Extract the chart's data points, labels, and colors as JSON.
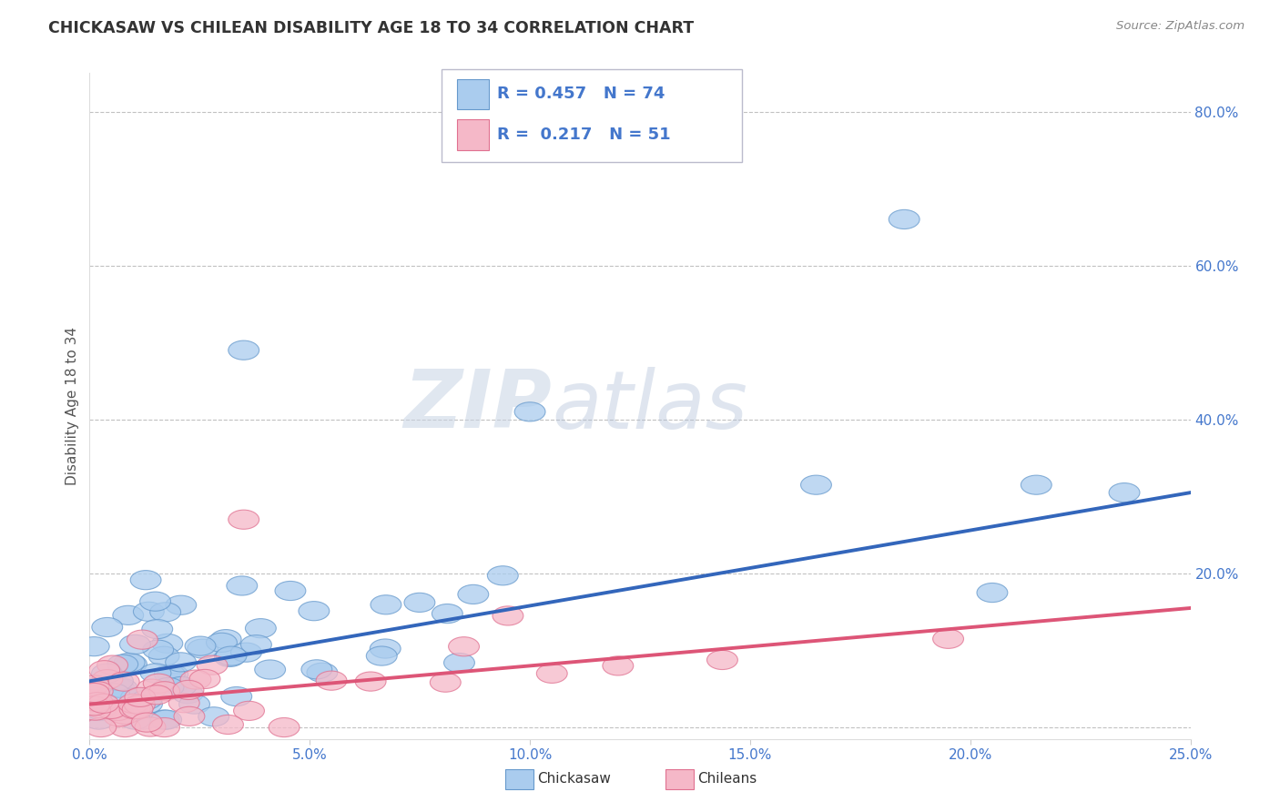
{
  "title": "CHICKASAW VS CHILEAN DISABILITY AGE 18 TO 34 CORRELATION CHART",
  "source": "Source: ZipAtlas.com",
  "ylabel": "Disability Age 18 to 34",
  "x_min": 0.0,
  "x_max": 0.25,
  "y_min": -0.015,
  "y_max": 0.85,
  "y_ticks": [
    0.0,
    0.2,
    0.4,
    0.6,
    0.8
  ],
  "y_tick_labels": [
    "",
    "20.0%",
    "40.0%",
    "60.0%",
    "80.0%"
  ],
  "x_ticks": [
    0.0,
    0.05,
    0.1,
    0.15,
    0.2,
    0.25
  ],
  "x_tick_labels": [
    "0.0%",
    "5.0%",
    "10.0%",
    "15.0%",
    "20.0%",
    "25.0%"
  ],
  "legend_r1": "R = 0.457",
  "legend_n1": "N = 74",
  "legend_r2": "R =  0.217",
  "legend_n2": "N = 51",
  "chickasaw_color": "#aaccee",
  "chilean_color": "#f5b8c8",
  "chickasaw_edge_color": "#6699cc",
  "chilean_edge_color": "#e07090",
  "chickasaw_line_color": "#3366bb",
  "chilean_line_color": "#dd5577",
  "background_color": "#ffffff",
  "grid_color": "#bbbbbb",
  "watermark_zip": "ZIP",
  "watermark_atlas": "atlas",
  "watermark_color": "#d0d8e8",
  "watermark_color2": "#c8d4e0",
  "tick_color": "#4477cc",
  "title_color": "#333333",
  "source_color": "#888888"
}
